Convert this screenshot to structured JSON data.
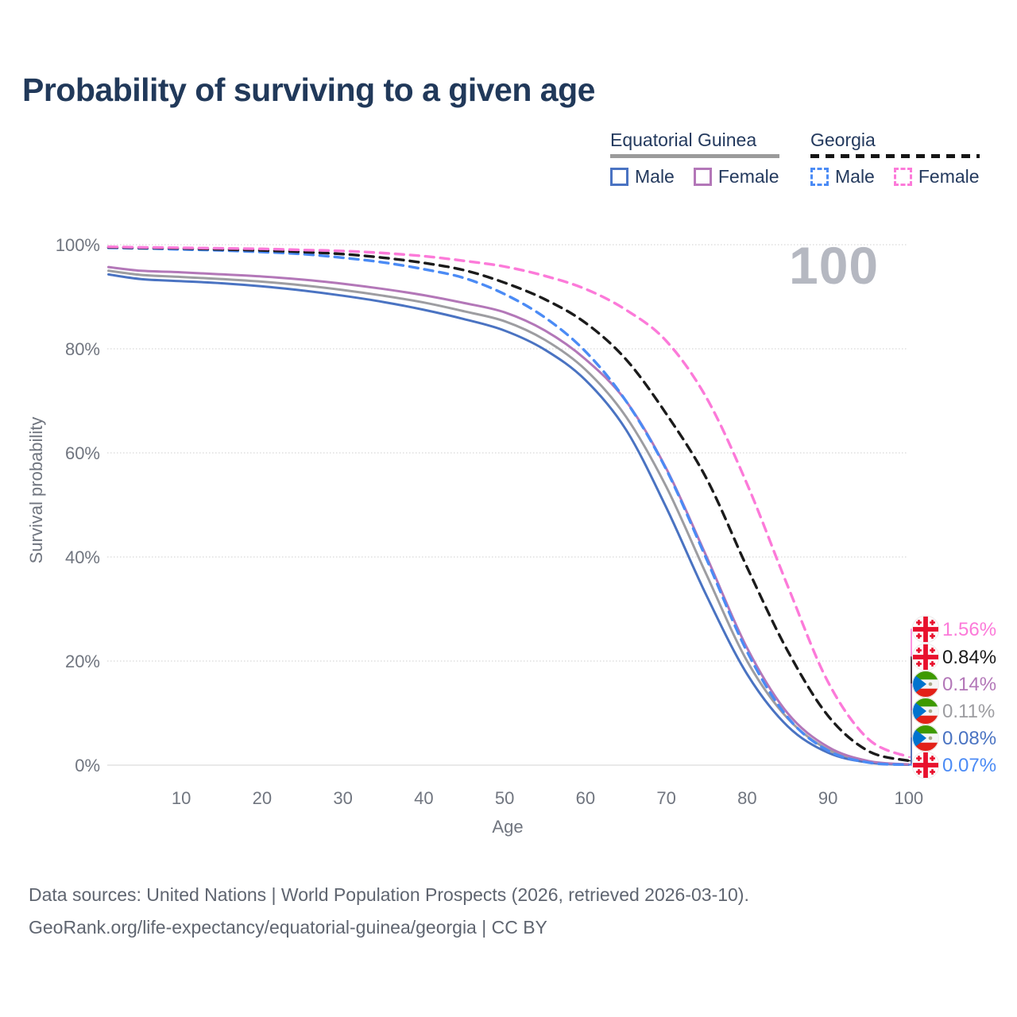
{
  "title": "Probability of surviving to a given age",
  "watermark": "100",
  "legend": {
    "groups": [
      {
        "label": "Equatorial Guinea",
        "line_style": "solid",
        "underline_color": "#9b9b9b",
        "items": [
          {
            "label": "Male",
            "color": "#4a73c2"
          },
          {
            "label": "Female",
            "color": "#b377b8"
          }
        ]
      },
      {
        "label": "Georgia",
        "line_style": "dashed",
        "underline_color": "#151515",
        "items": [
          {
            "label": "Male",
            "color": "#4b8bf5"
          },
          {
            "label": "Female",
            "color": "#fc7ad9"
          }
        ]
      }
    ]
  },
  "axes": {
    "y_label": "Survival probability",
    "x_label": "Age",
    "y_ticks": [
      "0%",
      "20%",
      "40%",
      "60%",
      "80%",
      "100%"
    ],
    "y_tick_values": [
      0,
      20,
      40,
      60,
      80,
      100
    ],
    "x_ticks": [
      "10",
      "20",
      "30",
      "40",
      "50",
      "60",
      "70",
      "80",
      "90",
      "100"
    ],
    "x_tick_values": [
      10,
      20,
      30,
      40,
      50,
      60,
      70,
      80,
      90,
      100
    ]
  },
  "chart_data": {
    "type": "line",
    "title": "Probability of surviving to a given age",
    "xlabel": "Age",
    "ylabel": "Survival probability",
    "x_range": [
      1,
      100
    ],
    "y_range_percent": [
      0,
      100
    ],
    "grid": "horizontal-dotted",
    "legend_position": "top-right",
    "ages": [
      1,
      5,
      10,
      15,
      20,
      25,
      30,
      35,
      40,
      45,
      50,
      55,
      60,
      65,
      70,
      75,
      80,
      85,
      90,
      95,
      100
    ],
    "series": [
      {
        "name": "Equatorial Guinea — Both sexes",
        "country": "Equatorial Guinea",
        "sex": "both",
        "color": "#9d9da1",
        "dash": "solid",
        "flag": "gq",
        "end_label": "0.11%",
        "values": [
          95.0,
          94.2,
          93.8,
          93.4,
          92.9,
          92.2,
          91.3,
          90.2,
          88.9,
          87.2,
          85.3,
          81.7,
          76.0,
          67.0,
          53.5,
          36.5,
          20.0,
          9.0,
          3.0,
          0.6,
          0.11
        ]
      },
      {
        "name": "Equatorial Guinea — Male",
        "country": "Equatorial Guinea",
        "sex": "male",
        "color": "#4a73c2",
        "dash": "solid",
        "flag": "gq",
        "end_label": "0.08%",
        "values": [
          94.3,
          93.4,
          93.0,
          92.6,
          92.0,
          91.2,
          90.2,
          89.0,
          87.5,
          85.7,
          83.5,
          79.8,
          74.0,
          64.5,
          49.5,
          32.5,
          17.5,
          7.5,
          2.4,
          0.5,
          0.08
        ]
      },
      {
        "name": "Equatorial Guinea — Female",
        "country": "Equatorial Guinea",
        "sex": "female",
        "color": "#b377b8",
        "dash": "solid",
        "flag": "gq",
        "end_label": "0.14%",
        "values": [
          95.7,
          95.0,
          94.7,
          94.3,
          93.9,
          93.3,
          92.5,
          91.5,
          90.3,
          88.8,
          87.0,
          83.5,
          78.0,
          70.0,
          57.0,
          40.0,
          22.5,
          10.0,
          3.5,
          0.8,
          0.14
        ]
      },
      {
        "name": "Georgia — Male",
        "country": "Georgia",
        "sex": "male",
        "color": "#4b8bf5",
        "dash": "dashed",
        "flag": "ge",
        "end_label": "0.07%",
        "values": [
          99.4,
          99.3,
          99.1,
          98.9,
          98.6,
          98.2,
          97.5,
          96.6,
          95.3,
          93.6,
          90.5,
          86.0,
          79.5,
          70.0,
          56.8,
          39.5,
          21.8,
          9.2,
          2.8,
          0.5,
          0.07
        ]
      },
      {
        "name": "Georgia — Both sexes",
        "country": "Georgia",
        "sex": "both",
        "color": "#1b1b1b",
        "dash": "dashed",
        "flag": "ge",
        "end_label": "0.84%",
        "values": [
          99.5,
          99.4,
          99.3,
          99.1,
          98.9,
          98.6,
          98.2,
          97.5,
          96.5,
          95.1,
          92.7,
          89.5,
          85.0,
          78.0,
          67.5,
          55.0,
          38.0,
          22.0,
          9.5,
          2.7,
          0.84
        ]
      },
      {
        "name": "Georgia — Female",
        "country": "Georgia",
        "sex": "female",
        "color": "#fc7ad9",
        "dash": "dashed",
        "flag": "ge",
        "end_label": "1.56%",
        "values": [
          99.6,
          99.5,
          99.4,
          99.3,
          99.2,
          99.0,
          98.8,
          98.4,
          97.8,
          96.9,
          95.8,
          94.0,
          91.5,
          87.5,
          81.5,
          70.5,
          54.0,
          34.5,
          16.0,
          5.0,
          1.56
        ]
      }
    ]
  },
  "end_labels": [
    {
      "value": "1.56%",
      "flag": "ge",
      "color": "#fc7ad9"
    },
    {
      "value": "0.84%",
      "flag": "ge",
      "color": "#1b1b1b"
    },
    {
      "value": "0.14%",
      "flag": "gq",
      "color": "#b377b8"
    },
    {
      "value": "0.11%",
      "flag": "gq",
      "color": "#9d9da1"
    },
    {
      "value": "0.08%",
      "flag": "gq",
      "color": "#4a73c2"
    },
    {
      "value": "0.07%",
      "flag": "ge",
      "color": "#4b8bf5"
    }
  ],
  "flag_colors": {
    "georgia_red": "#e8112d",
    "gq_green": "#3e9a00",
    "gq_red": "#e32118",
    "gq_blue": "#0073ce"
  },
  "footer": {
    "line1": "Data sources: United Nations | World Population Prospects (2026, retrieved 2026-03-10).",
    "line2": "GeoRank.org/life-expectancy/equatorial-guinea/georgia | CC BY"
  }
}
